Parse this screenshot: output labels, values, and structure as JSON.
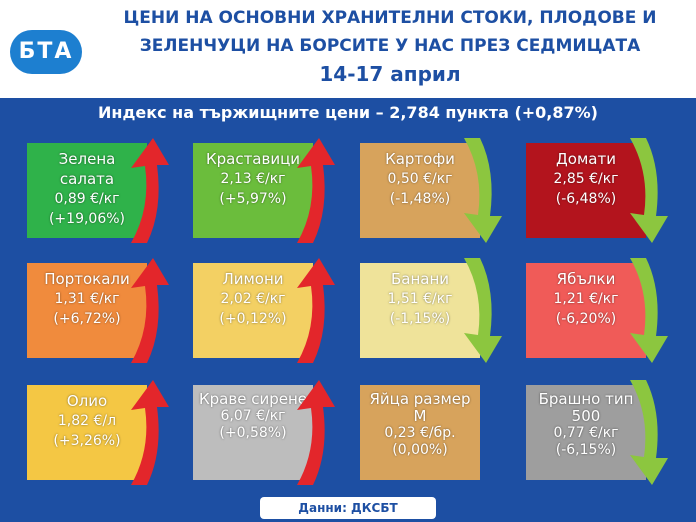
{
  "header": {
    "title_lines": [
      "ЦЕНИ НА ОСНОВНИ ХРАНИТЕЛНИ СТОКИ, ПЛОДОВЕ И",
      "ЗЕЛЕНЧУЦИ НА БОРСИТЕ У НАС ПРЕЗ СЕДМИЦАТА",
      "14-17 април"
    ],
    "logo": "БТА"
  },
  "index": "Индекс на тържищните цени – 2,784 пункта (+0,87%)",
  "tiles": [
    {
      "name": "Зелена салата",
      "price": "0,89 €/кг",
      "change": "(+19,06%)"
    },
    {
      "name": "Краставици",
      "price": "2,13 €/кг",
      "change": "(+5,97%)"
    },
    {
      "name": "Картофи",
      "price": "0,50 €/кг",
      "change": "(-1,48%)"
    },
    {
      "name": "Домати",
      "price": "2,85 €/кг",
      "change": "(-6,48%)"
    },
    {
      "name": "Портокали",
      "price": "1,31 €/кг",
      "change": "(+6,72%)"
    },
    {
      "name": "Лимони",
      "price": "2,02 €/кг",
      "change": "(+0,12%)"
    },
    {
      "name": "Банани",
      "price": "1,51 €/кг",
      "change": "(-1,15%)"
    },
    {
      "name": "Ябълки",
      "price": "1,21 €/кг",
      "change": "(-6,20%)"
    },
    {
      "name": "Олио",
      "price": "1,82 €/л",
      "change": "(+3,26%)"
    },
    {
      "name": "Краве сирене",
      "price": "6,07 €/кг",
      "change": "(+0,58%)"
    },
    {
      "name": "Яйца размер М",
      "price": "0,23 €/бр.",
      "change": "(0,00%)"
    },
    {
      "name": "Брашно тип 500",
      "price": "0,77 €/кг",
      "change": "(-6,15%)"
    }
  ],
  "source": "Данни: ДКСБТ"
}
